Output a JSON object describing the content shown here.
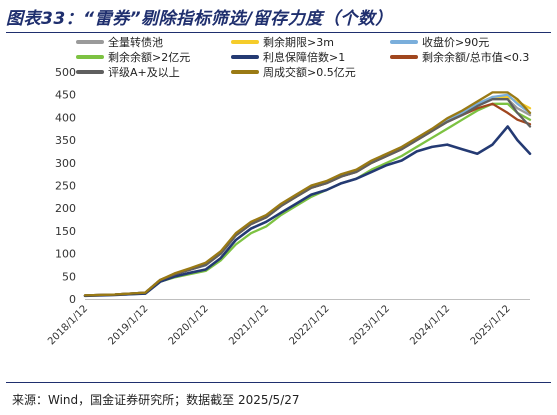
{
  "figure": {
    "title": "图表33：“雷券”剔除指标筛选/留存力度（个数）",
    "source": "来源：Wind，国金证券研究所；数据截至 2025/5/27"
  },
  "chart_data": {
    "type": "line",
    "title": "",
    "xlabel": "",
    "ylabel": "",
    "ylim": [
      0,
      500
    ],
    "yticks": [
      0,
      50,
      100,
      150,
      200,
      250,
      300,
      350,
      400,
      450,
      500
    ],
    "xticks": [
      "2018/1/12",
      "2019/1/12",
      "2020/1/12",
      "2021/1/12",
      "2022/1/12",
      "2023/1/12",
      "2024/1/12",
      "2025/1/12"
    ],
    "x": [
      "2018/1/12",
      "2018/7/12",
      "2019/1/12",
      "2019/4/12",
      "2019/7/12",
      "2019/10/12",
      "2020/1/12",
      "2020/4/12",
      "2020/7/12",
      "2020/10/12",
      "2021/1/12",
      "2021/4/12",
      "2021/7/12",
      "2021/10/12",
      "2022/1/12",
      "2022/4/12",
      "2022/7/12",
      "2022/10/12",
      "2023/1/12",
      "2023/4/12",
      "2023/7/12",
      "2023/10/12",
      "2024/1/12",
      "2024/4/12",
      "2024/7/12",
      "2024/10/12",
      "2025/1/12",
      "2025/3/12",
      "2025/5/27"
    ],
    "grid": false,
    "legend_position": "top",
    "series": [
      {
        "name": "全量转债池",
        "color": "#9a9a9a",
        "values": [
          8,
          10,
          14,
          42,
          55,
          65,
          75,
          100,
          140,
          165,
          180,
          205,
          225,
          245,
          255,
          270,
          280,
          300,
          315,
          330,
          350,
          370,
          395,
          410,
          430,
          445,
          440,
          420,
          405
        ]
      },
      {
        "name": "剩余期限>3m",
        "color": "#f5cc2a",
        "values": [
          8,
          10,
          14,
          42,
          55,
          65,
          75,
          100,
          140,
          165,
          180,
          205,
          225,
          245,
          255,
          270,
          280,
          300,
          315,
          330,
          350,
          370,
          395,
          410,
          430,
          445,
          445,
          435,
          420
        ]
      },
      {
        "name": "收盘价>90元",
        "color": "#7aaedb",
        "values": [
          8,
          10,
          14,
          42,
          55,
          65,
          74,
          100,
          140,
          165,
          180,
          205,
          225,
          245,
          255,
          270,
          280,
          300,
          315,
          330,
          350,
          370,
          395,
          410,
          430,
          445,
          450,
          430,
          410
        ]
      },
      {
        "name": "剩余余额>2亿元",
        "color": "#7dc242",
        "values": [
          7,
          9,
          12,
          38,
          48,
          55,
          62,
          85,
          120,
          145,
          160,
          185,
          205,
          225,
          240,
          255,
          265,
          285,
          300,
          315,
          335,
          355,
          375,
          395,
          415,
          430,
          430,
          410,
          395
        ]
      },
      {
        "name": "利息保障倍数>1",
        "color": "#243a73",
        "values": [
          7,
          9,
          12,
          38,
          50,
          58,
          65,
          90,
          130,
          155,
          170,
          190,
          210,
          230,
          240,
          255,
          265,
          280,
          295,
          305,
          325,
          335,
          340,
          330,
          320,
          340,
          380,
          350,
          320
        ]
      },
      {
        "name": "剩余余额/总市值<0.3",
        "color": "#a0461e",
        "values": [
          8,
          10,
          14,
          42,
          55,
          65,
          75,
          100,
          140,
          165,
          180,
          205,
          225,
          245,
          255,
          270,
          280,
          300,
          315,
          330,
          350,
          370,
          390,
          405,
          420,
          430,
          410,
          395,
          385
        ]
      },
      {
        "name": "评级A+及以上",
        "color": "#5f5f5f",
        "values": [
          8,
          10,
          14,
          42,
          55,
          65,
          75,
          100,
          140,
          165,
          180,
          205,
          225,
          245,
          255,
          270,
          280,
          300,
          315,
          330,
          350,
          370,
          390,
          405,
          425,
          440,
          440,
          410,
          380
        ]
      },
      {
        "name": "周成交额>0.5亿元",
        "color": "#9a7a14",
        "values": [
          8,
          10,
          14,
          42,
          57,
          68,
          80,
          105,
          145,
          170,
          185,
          210,
          230,
          250,
          260,
          275,
          285,
          305,
          320,
          335,
          355,
          375,
          398,
          415,
          435,
          455,
          455,
          440,
          410
        ]
      }
    ]
  }
}
